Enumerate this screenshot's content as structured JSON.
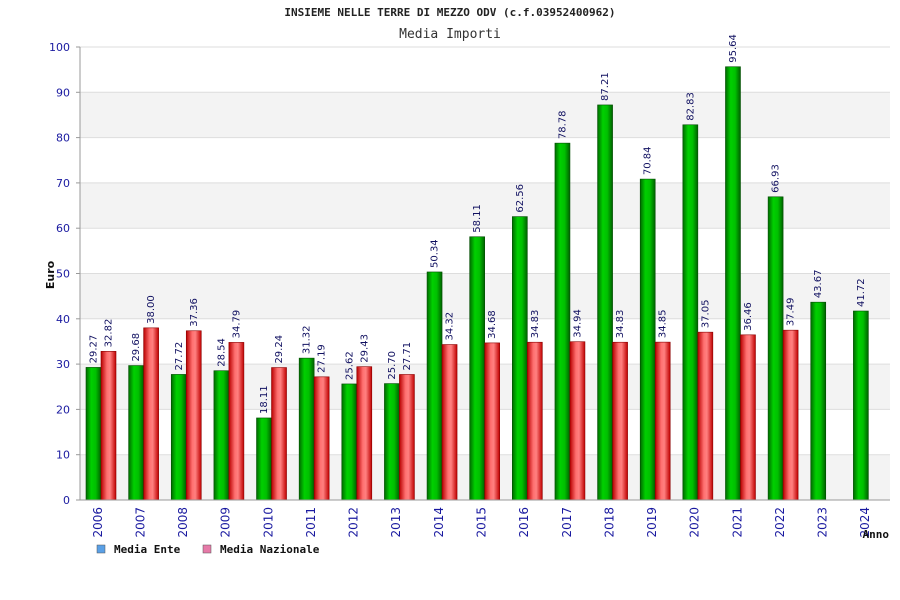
{
  "chart_data": {
    "type": "bar",
    "title": "INSIEME NELLE TERRE DI MEZZO ODV (c.f.03952400962)",
    "subtitle": "Media Importi",
    "ylabel": "Euro",
    "xlabel": "Anno",
    "ylim": [
      0,
      100
    ],
    "yticks": [
      0,
      10,
      20,
      30,
      40,
      50,
      60,
      70,
      80,
      90,
      100
    ],
    "categories": [
      "2006",
      "2007",
      "2008",
      "2009",
      "2010",
      "2011",
      "2012",
      "2013",
      "2014",
      "2015",
      "2016",
      "2017",
      "2018",
      "2019",
      "2020",
      "2021",
      "2022",
      "2023",
      "2024"
    ],
    "series": [
      {
        "name": "Media Ente",
        "color": "#00aa00",
        "legend_color": "#5aa0e6",
        "values": [
          29.27,
          29.68,
          27.72,
          28.54,
          18.11,
          31.32,
          25.62,
          25.7,
          50.34,
          58.11,
          62.56,
          78.78,
          87.21,
          70.84,
          82.83,
          95.64,
          66.93,
          43.67,
          41.72
        ],
        "labels": [
          "29.27",
          "29.68",
          "27.72",
          "28.54",
          "18.11",
          "31.32",
          "25.62",
          "25.70",
          "50.34",
          "58.11",
          "62.56",
          "78.78",
          "87.21",
          "70.84",
          "82.83",
          "95.64",
          "66.93",
          "43.67",
          "41.72"
        ]
      },
      {
        "name": "Media Nazionale",
        "color": "#e02020",
        "legend_color": "#e67aa8",
        "values": [
          32.82,
          38.0,
          37.36,
          34.79,
          29.24,
          27.19,
          29.43,
          27.71,
          34.32,
          34.68,
          34.83,
          34.94,
          34.83,
          34.85,
          37.05,
          36.46,
          37.49,
          null,
          null
        ],
        "labels": [
          "32.82",
          "38.00",
          "37.36",
          "34.79",
          "29.24",
          "27.19",
          "29.43",
          "27.71",
          "34.32",
          "34.68",
          "34.83",
          "34.94",
          "34.83",
          "34.85",
          "37.05",
          "36.46",
          "37.49",
          null,
          null
        ]
      }
    ],
    "grid": true,
    "legend_position": "bottom-left"
  }
}
